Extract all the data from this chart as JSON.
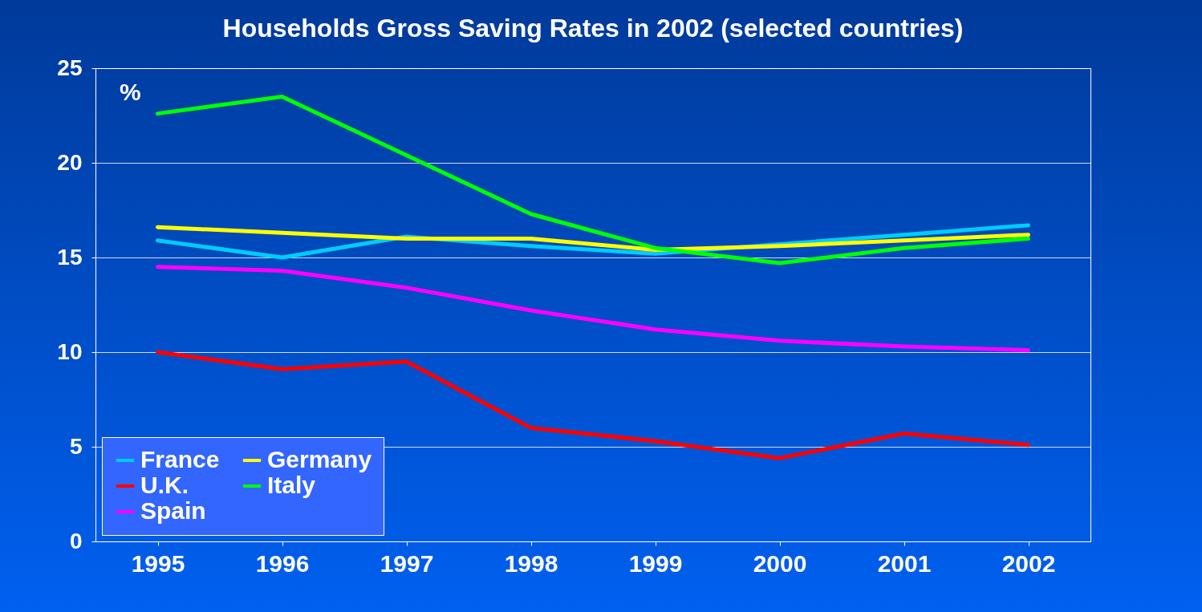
{
  "chart_data": {
    "type": "line",
    "title": "Households Gross Saving Rates in 2002 (selected countries)",
    "categories": [
      "1995",
      "1996",
      "1997",
      "1998",
      "1999",
      "2000",
      "2001",
      "2002"
    ],
    "series": [
      {
        "name": "France",
        "color": "#00ccff",
        "values": [
          15.9,
          15.0,
          16.1,
          15.6,
          15.2,
          15.7,
          16.2,
          16.7
        ]
      },
      {
        "name": "U.K.",
        "color": "#ff0000",
        "values": [
          10.0,
          9.1,
          9.5,
          6.0,
          5.3,
          4.4,
          5.7,
          5.1
        ]
      },
      {
        "name": "Spain",
        "color": "#ff00ff",
        "values": [
          14.5,
          14.3,
          13.4,
          12.2,
          11.2,
          10.6,
          10.3,
          10.1
        ]
      },
      {
        "name": "Germany",
        "color": "#ffff00",
        "values": [
          16.6,
          16.3,
          16.0,
          16.0,
          15.4,
          15.6,
          15.9,
          16.2
        ]
      },
      {
        "name": "Italy",
        "color": "#00ff00",
        "values": [
          22.6,
          23.5,
          20.4,
          17.3,
          15.5,
          14.7,
          15.5,
          16.0
        ]
      }
    ],
    "ylim": [
      0,
      25
    ],
    "yticks": [
      0,
      5,
      10,
      15,
      20,
      25
    ],
    "grid": "y",
    "legend": "bottom left",
    "annotations": [
      "%"
    ]
  }
}
